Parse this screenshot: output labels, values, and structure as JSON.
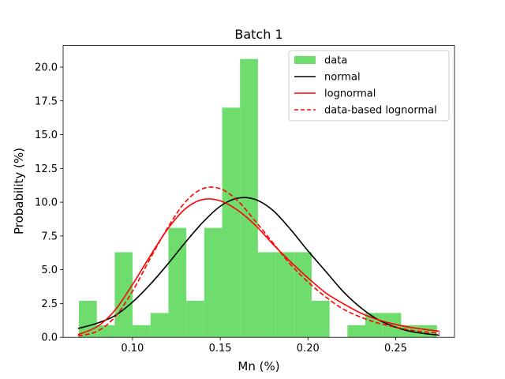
{
  "chart_data": {
    "type": "bar",
    "title": "Batch 1",
    "xlabel": "Mn (%)",
    "ylabel": "Probability (%)",
    "xlim": [
      0.0605,
      0.2835
    ],
    "ylim": [
      0,
      21.6
    ],
    "xticks": [
      0.1,
      0.15,
      0.2,
      0.25
    ],
    "xtick_labels": [
      "0.10",
      "0.15",
      "0.20",
      "0.25"
    ],
    "yticks": [
      0,
      2.5,
      5.0,
      7.5,
      10.0,
      12.5,
      15.0,
      17.5,
      20.0
    ],
    "ytick_labels": [
      "0.0",
      "2.5",
      "5.0",
      "7.5",
      "10.0",
      "12.5",
      "15.0",
      "17.5",
      "20.0"
    ],
    "grid": false,
    "legend_position": "top-right",
    "histogram": {
      "name": "data",
      "color": "#6edd6e",
      "bin_edges": [
        0.0695,
        0.0797,
        0.0899,
        0.1001,
        0.1103,
        0.1205,
        0.1307,
        0.1409,
        0.1511,
        0.1613,
        0.1715,
        0.1817,
        0.1919,
        0.2021,
        0.2123,
        0.2225,
        0.2327,
        0.2429,
        0.2531,
        0.2633,
        0.2735
      ],
      "values": [
        2.7,
        0.9,
        6.3,
        0.9,
        1.8,
        8.1,
        2.7,
        8.1,
        17.0,
        20.6,
        6.3,
        6.3,
        6.3,
        2.7,
        0.0,
        0.9,
        1.8,
        1.8,
        0.9,
        0.9
      ]
    },
    "series": [
      {
        "name": "normal",
        "color": "#000000",
        "dash": "solid",
        "x": [
          0.069,
          0.08,
          0.09,
          0.1,
          0.11,
          0.12,
          0.13,
          0.14,
          0.15,
          0.16,
          0.17,
          0.18,
          0.19,
          0.2,
          0.21,
          0.22,
          0.23,
          0.24,
          0.25,
          0.26,
          0.275
        ],
        "y": [
          0.65,
          1.05,
          1.6,
          2.6,
          3.9,
          5.4,
          7.0,
          8.5,
          9.7,
          10.3,
          10.2,
          9.4,
          8.0,
          6.4,
          4.9,
          3.4,
          2.2,
          1.3,
          0.75,
          0.4,
          0.15
        ]
      },
      {
        "name": "lognormal",
        "color": "#ff0000",
        "dash": "solid",
        "x": [
          0.069,
          0.08,
          0.09,
          0.1,
          0.11,
          0.12,
          0.13,
          0.14,
          0.15,
          0.16,
          0.17,
          0.18,
          0.19,
          0.2,
          0.21,
          0.22,
          0.23,
          0.24,
          0.25,
          0.26,
          0.275
        ],
        "y": [
          0.2,
          0.8,
          2.0,
          3.9,
          6.0,
          8.0,
          9.5,
          10.2,
          10.1,
          9.4,
          8.3,
          6.9,
          5.6,
          4.4,
          3.3,
          2.5,
          1.8,
          1.3,
          0.95,
          0.7,
          0.45
        ]
      },
      {
        "name": "data-based lognormal",
        "color": "#ff0000",
        "dash": "dashed",
        "x": [
          0.069,
          0.08,
          0.09,
          0.1,
          0.11,
          0.12,
          0.13,
          0.14,
          0.15,
          0.16,
          0.17,
          0.18,
          0.19,
          0.2,
          0.21,
          0.22,
          0.23,
          0.24,
          0.25,
          0.26,
          0.275
        ],
        "y": [
          0.1,
          0.45,
          1.5,
          3.4,
          5.8,
          8.1,
          10.0,
          11.0,
          11.0,
          10.1,
          8.6,
          7.0,
          5.4,
          4.1,
          3.0,
          2.1,
          1.5,
          1.05,
          0.75,
          0.5,
          0.3
        ]
      }
    ]
  }
}
